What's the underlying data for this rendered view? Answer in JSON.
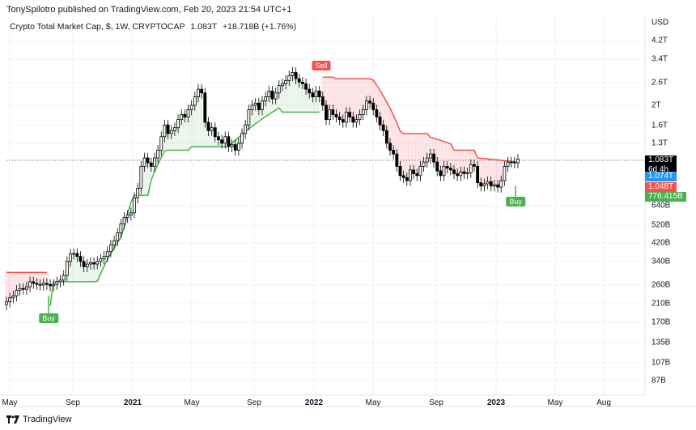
{
  "header": {
    "published": "TonySpilotro published on TradingView.com, Feb 20, 2023 21:54 UTC+1"
  },
  "legend": {
    "symbol": "Crypto Total Market Cap, $, 1W, CRYPTOCAP",
    "last": "1.083T",
    "change": "+18.718B (+1.76%)"
  },
  "price_axis": {
    "currency": "USD",
    "ticks": [
      "4.2T",
      "3.4T",
      "2.6T",
      "2T",
      "1.6T",
      "1.3T",
      "640B",
      "520B",
      "420B",
      "340B",
      "260B",
      "210B",
      "170B",
      "135B",
      "107B",
      "87B"
    ]
  },
  "price_tags": {
    "last": {
      "value": "1.083T",
      "countdown": "6d 4h",
      "color": "#000000"
    },
    "blue": {
      "value": "1.074T",
      "color": "#2196f3"
    },
    "red": {
      "value": "1.048T",
      "color": "#f05350"
    },
    "green": {
      "value": "776.415B",
      "color": "#4caf50"
    }
  },
  "time_axis": {
    "labels": [
      {
        "text": "May",
        "bold": false
      },
      {
        "text": "Sep",
        "bold": false
      },
      {
        "text": "2021",
        "bold": true
      },
      {
        "text": "May",
        "bold": false
      },
      {
        "text": "Sep",
        "bold": false
      },
      {
        "text": "2022",
        "bold": true
      },
      {
        "text": "May",
        "bold": false
      },
      {
        "text": "Sep",
        "bold": false
      },
      {
        "text": "2023",
        "bold": true
      },
      {
        "text": "May",
        "bold": false
      },
      {
        "text": "Aug",
        "bold": false
      }
    ]
  },
  "signals": {
    "buy1": "Buy",
    "sell": "Sell",
    "buy2": "Buy"
  },
  "footer": {
    "brand": "TradingView"
  },
  "colors": {
    "up_line": "#4caf50",
    "down_line": "#f05350",
    "up_fill": "rgba(76,175,80,0.10)",
    "down_fill": "rgba(242,54,69,0.12)",
    "candle": "#000000",
    "grid": "#f0f3fa"
  },
  "chart_data": {
    "type": "candlestick",
    "title": "Crypto Total Market Cap, $, 1W, CRYPTOCAP",
    "scale": "log",
    "ylabel": "USD",
    "ylim": [
      80,
      4500
    ],
    "x_tick_labels": [
      "May",
      "Sep",
      "2021",
      "May",
      "Sep",
      "2022",
      "May",
      "Sep",
      "2023",
      "May",
      "Aug"
    ],
    "y_tick_labels": [
      "4.2T",
      "3.4T",
      "2.6T",
      "2T",
      "1.6T",
      "1.3T",
      "640B",
      "520B",
      "420B",
      "340B",
      "260B",
      "210B",
      "170B",
      "135B",
      "107B",
      "87B"
    ],
    "last_price": "1.083T",
    "change": "+18.718B (+1.76%)",
    "indicator": "SuperTrend",
    "signals": [
      {
        "label": "Buy",
        "date": "2020-07",
        "price_B": 210
      },
      {
        "label": "Sell",
        "date": "2022-01",
        "price_B": 3000
      },
      {
        "label": "Buy",
        "date": "2023-02",
        "price_B": 776
      }
    ],
    "weekly_close_B": [
      215,
      225,
      230,
      245,
      250,
      248,
      255,
      270,
      265,
      262,
      260,
      265,
      262,
      258,
      262,
      270,
      275,
      290,
      340,
      370,
      372,
      360,
      340,
      320,
      330,
      335,
      330,
      340,
      350,
      360,
      380,
      410,
      430,
      470,
      520,
      560,
      575,
      590,
      700,
      780,
      1000,
      1100,
      1040,
      1000,
      1100,
      1200,
      1400,
      1600,
      1450,
      1500,
      1550,
      1700,
      1800,
      1750,
      1900,
      2000,
      2200,
      2400,
      2300,
      1650,
      1500,
      1550,
      1400,
      1350,
      1300,
      1400,
      1250,
      1280,
      1200,
      1300,
      1450,
      1600,
      1900,
      2000,
      2050,
      1900,
      2100,
      2200,
      2350,
      2150,
      2300,
      2500,
      2550,
      2650,
      2800,
      2900,
      2700,
      2600,
      2550,
      2400,
      2300,
      2200,
      2350,
      2200,
      2000,
      1700,
      1900,
      1800,
      1750,
      1700,
      1650,
      1850,
      1750,
      1650,
      1700,
      1800,
      1900,
      2100,
      2050,
      1900,
      1750,
      1600,
      1500,
      1300,
      1200,
      1150,
      1000,
      900,
      880,
      850,
      960,
      920,
      900,
      1000,
      1050,
      1100,
      1150,
      1050,
      950,
      900,
      1000,
      980,
      960,
      920,
      900,
      940,
      920,
      930,
      1020,
      1000,
      830,
      800,
      820,
      840,
      800,
      810,
      790,
      850,
      1000,
      1050,
      1050,
      1040,
      1083
    ],
    "supertrend": "line values described in markup"
  }
}
